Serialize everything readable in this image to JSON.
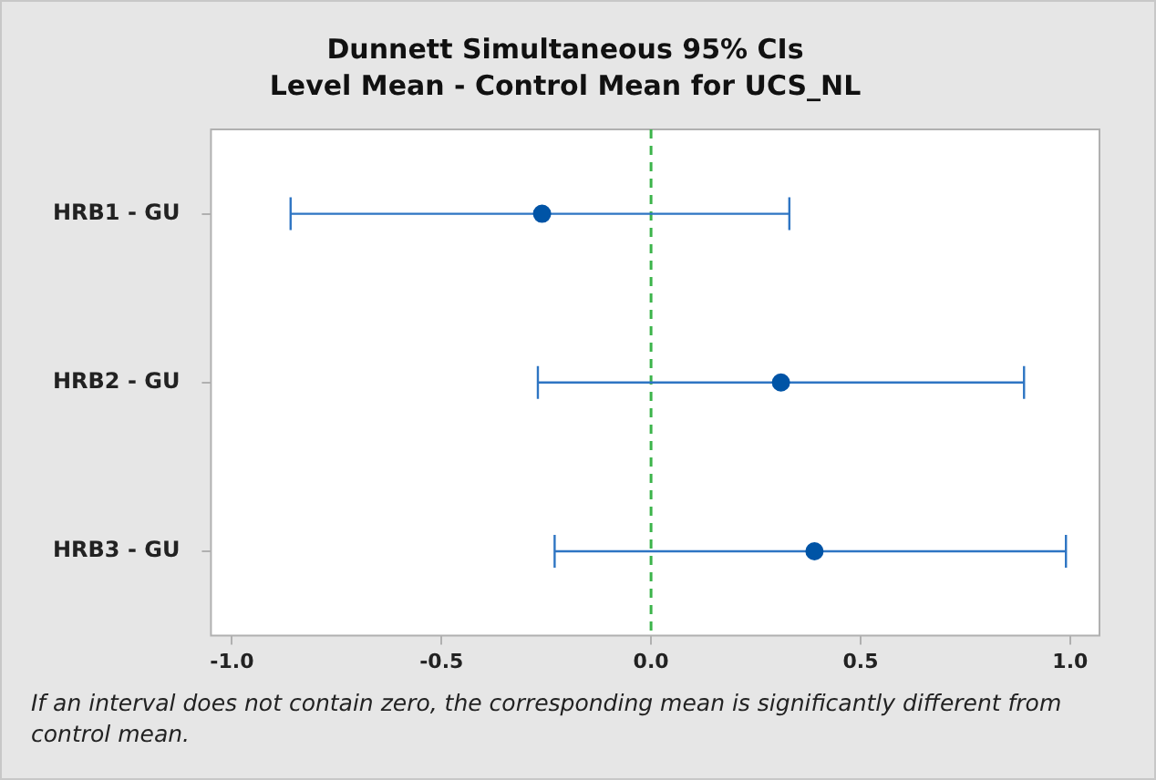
{
  "chart_data": {
    "type": "scatter",
    "orientation": "horizontal",
    "title": "Dunnett Simultaneous 95% CIs",
    "subtitle": "Level Mean - Control Mean for UCS_NL",
    "categories": [
      "HRB1 - GU",
      "HRB2 - GU",
      "HRB3 - GU"
    ],
    "values": [
      -0.26,
      0.31,
      0.39
    ],
    "errors": [
      [
        -0.86,
        0.33
      ],
      [
        -0.27,
        0.89
      ],
      [
        -0.23,
        0.99
      ]
    ],
    "color": "#0054a6",
    "marker": "circle",
    "xlim": [
      -1.05,
      1.07
    ],
    "xticks": [
      {
        "value": -1,
        "label": "-1.0"
      },
      {
        "value": -0.5,
        "label": "-0.5"
      },
      {
        "value": 0,
        "label": "0.0"
      },
      {
        "value": 0.5,
        "label": "0.5"
      },
      {
        "value": 1,
        "label": "1.0"
      }
    ],
    "ref_lines": [
      {
        "axis": "x",
        "value": 0,
        "color": "#3cb44b",
        "line_style": "dashed"
      }
    ],
    "grid": false,
    "legend": false,
    "annotations": [
      "If an interval does not contain zero, the corresponding mean is significantly different from control mean."
    ]
  }
}
